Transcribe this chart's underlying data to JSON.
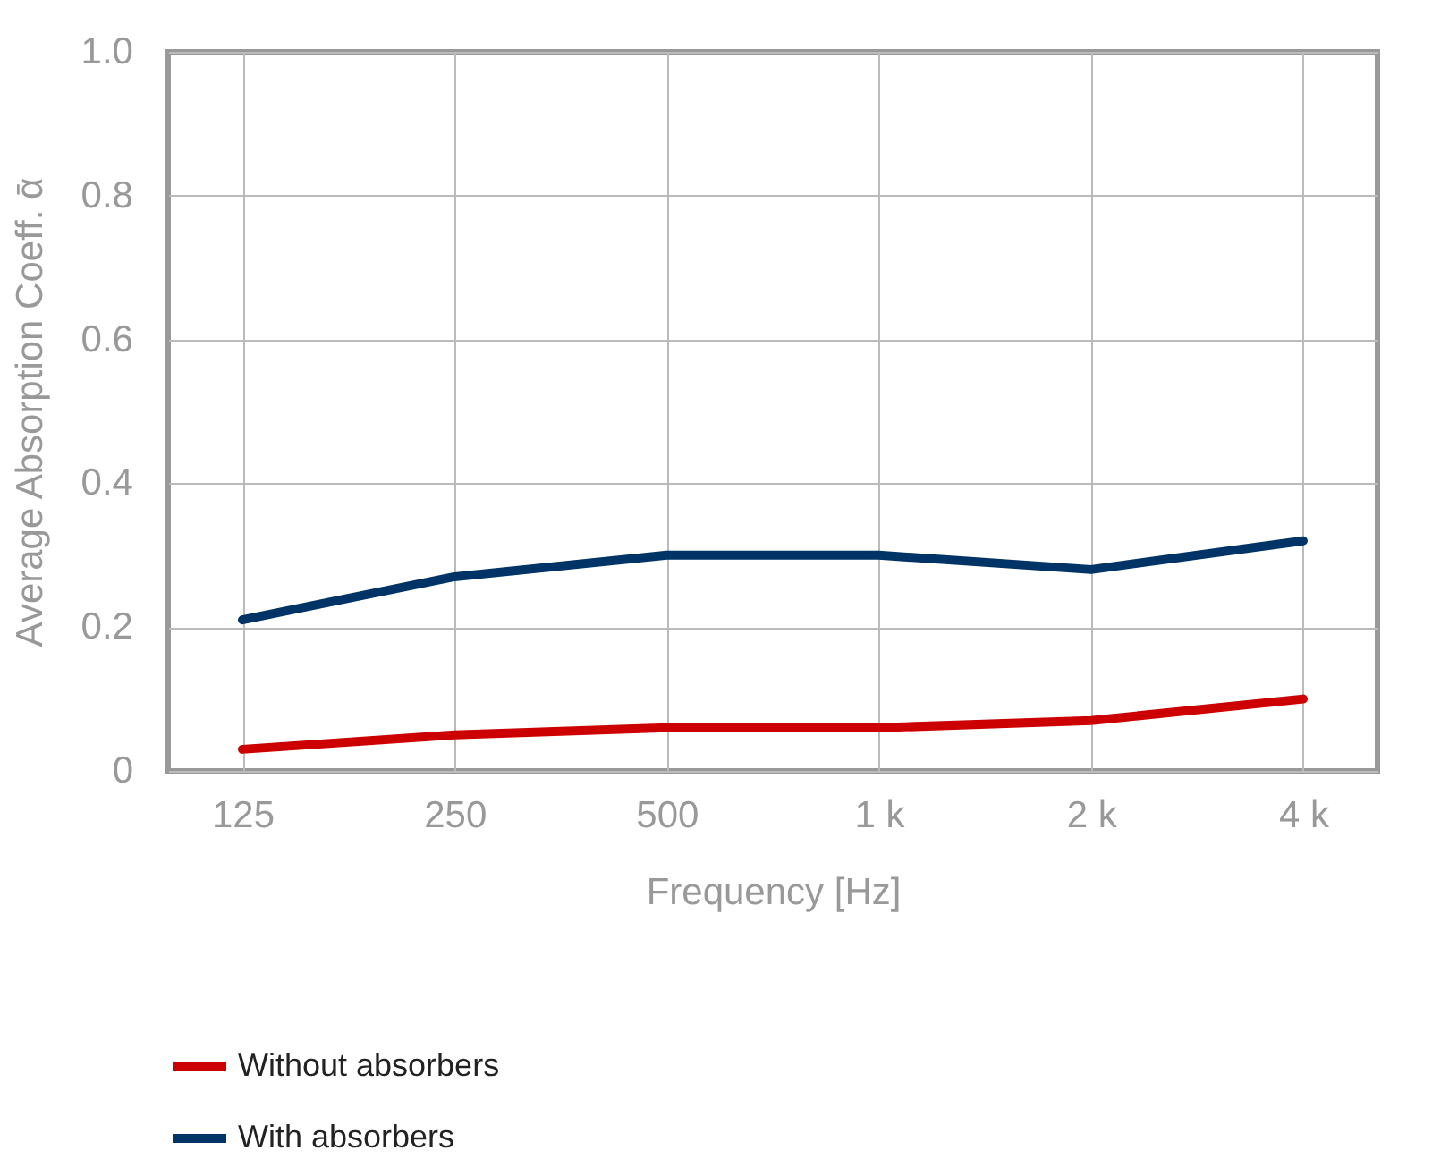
{
  "chart_data": {
    "type": "line",
    "xlabel": "Frequency [Hz]",
    "ylabel": "Average Absorption Coeff. ᾱ",
    "categories": [
      "125",
      "250",
      "500",
      "1 k",
      "2 k",
      "4 k"
    ],
    "series": [
      {
        "name": "Without absorbers",
        "color": "#cc0000",
        "values": [
          0.03,
          0.05,
          0.06,
          0.06,
          0.07,
          0.1
        ]
      },
      {
        "name": "With absorbers",
        "color": "#003366",
        "values": [
          0.21,
          0.27,
          0.3,
          0.3,
          0.28,
          0.32
        ]
      }
    ],
    "ylim": [
      0,
      1
    ],
    "yticks": [
      0,
      0.2,
      0.4,
      0.6,
      0.8,
      {
        "value": 1,
        "label": "1.0"
      }
    ],
    "grid": true,
    "legend": "bottom",
    "marker": "none",
    "line_style": "solid"
  }
}
